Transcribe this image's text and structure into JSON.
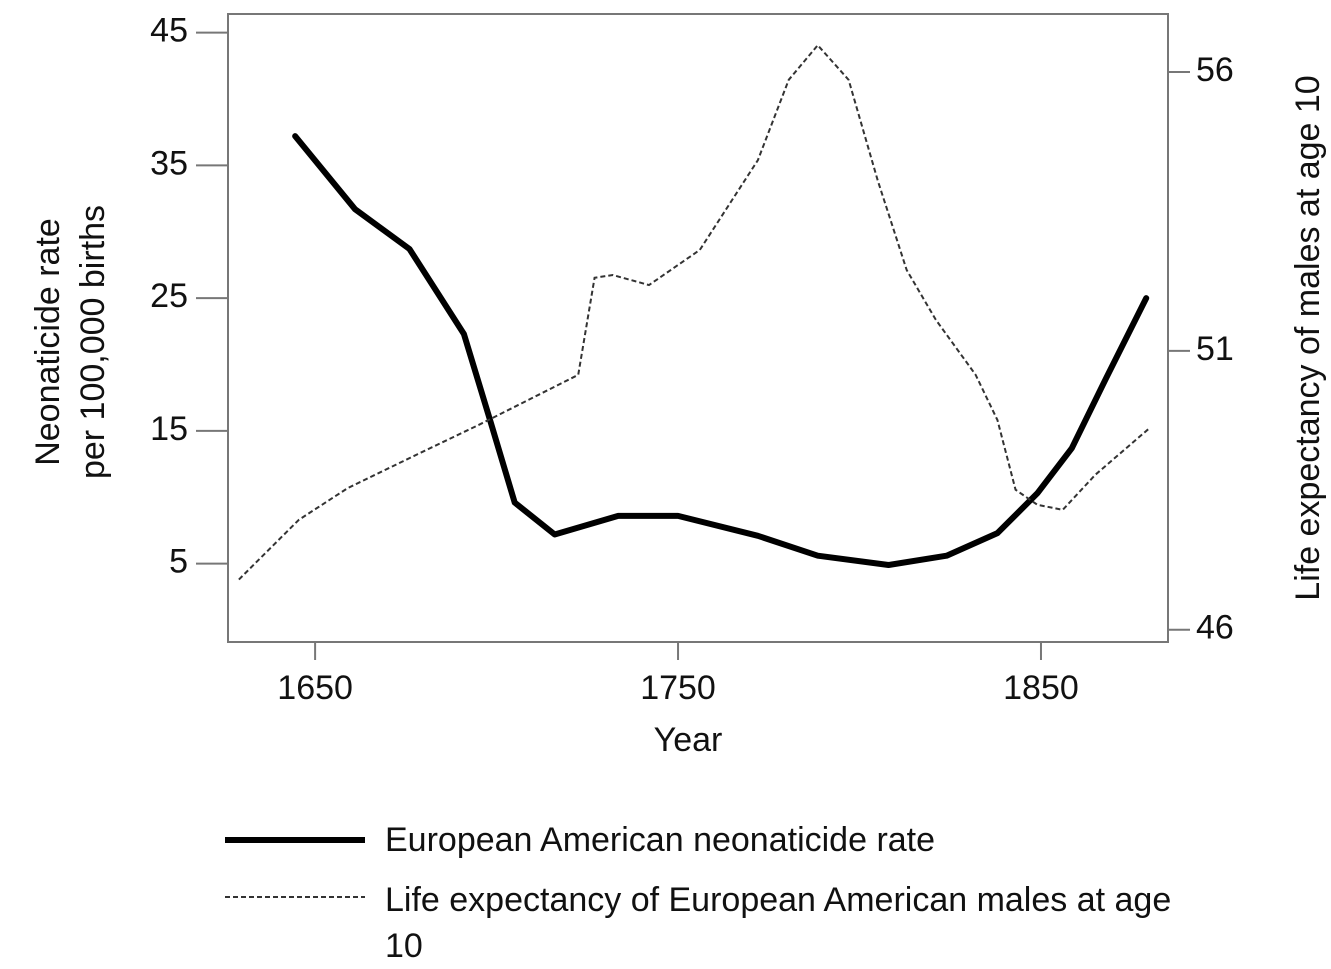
{
  "chart_data": {
    "type": "line",
    "xlabel": "Year",
    "ylabel": [
      "Neonaticide rate",
      "per 100,000 births"
    ],
    "y2label": "Life expectancy of males at age 10",
    "xlim": [
      1626,
      1885
    ],
    "xticks": [
      1650,
      1750,
      1850
    ],
    "ylim": [
      -0.9,
      46.4
    ],
    "yticks": [
      5,
      15,
      25,
      35,
      45
    ],
    "y2lim": [
      45.78,
      57.04
    ],
    "y2ticks": [
      46,
      51,
      56
    ],
    "legend": "bottom",
    "series": [
      {
        "name": "European American neonaticide rate",
        "color": "#000000",
        "linestyle": "solid",
        "axis": "y",
        "x": [
          1644.5,
          1661,
          1676,
          1691,
          1698,
          1705,
          1716,
          1733.5,
          1750,
          1772,
          1788.5,
          1808,
          1824,
          1838,
          1849,
          1858.5,
          1868,
          1879
        ],
        "values": [
          37.2,
          31.7,
          28.7,
          22.3,
          16.0,
          9.6,
          7.2,
          8.6,
          8.6,
          7.1,
          5.6,
          4.9,
          5.6,
          7.3,
          10.3,
          13.7,
          19.0,
          25.0
        ]
      },
      {
        "name": "Life expectancy of European American males at age 10",
        "color": "#333333",
        "linestyle": "dashed",
        "axis": "y2",
        "x": [
          1629,
          1645.5,
          1659,
          1678,
          1695,
          1711.5,
          1722.5,
          1727,
          1732,
          1742,
          1756,
          1772,
          1780.5,
          1788.5,
          1797,
          1805,
          1813,
          1821,
          1832,
          1838,
          1843,
          1849,
          1856,
          1865,
          1880
        ],
        "values": [
          46.9,
          47.97,
          48.54,
          49.14,
          49.67,
          50.21,
          50.57,
          52.31,
          52.36,
          52.18,
          52.81,
          54.42,
          55.86,
          56.48,
          55.86,
          54.06,
          52.45,
          51.56,
          50.57,
          49.76,
          48.51,
          48.24,
          48.15,
          48.78,
          49.62
        ]
      }
    ]
  }
}
